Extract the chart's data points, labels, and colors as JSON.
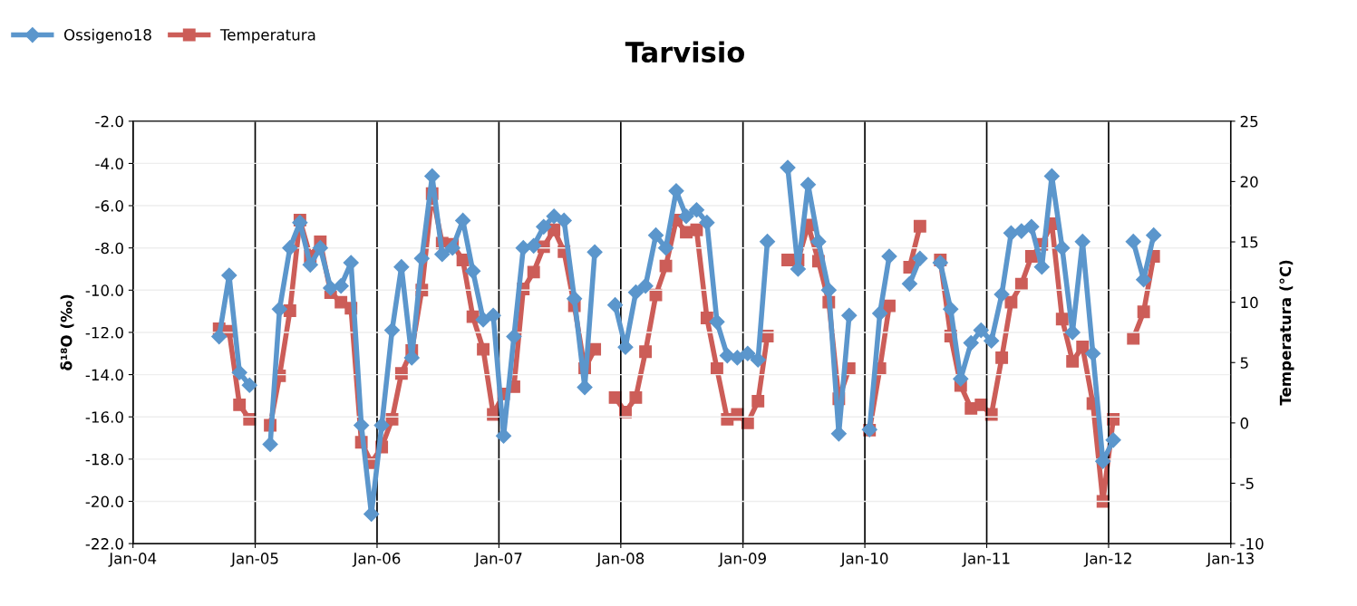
{
  "chart_data": {
    "type": "line",
    "title": "Tarvisio",
    "ylabel": "δ¹⁸O (‰)",
    "y2label": "Temperatura (°C)",
    "x": [
      "2004-09-15",
      "2004-10-15",
      "2004-11-15",
      "2004-12-15",
      "2005-01-15",
      "2005-02-15",
      "2005-03-15",
      "2005-04-15",
      "2005-05-15",
      "2005-06-15",
      "2005-07-15",
      "2005-08-15",
      "2005-09-15",
      "2005-10-15",
      "2005-11-15",
      "2005-12-15",
      "2006-01-15",
      "2006-02-15",
      "2006-03-15",
      "2006-04-15",
      "2006-05-15",
      "2006-06-15",
      "2006-07-15",
      "2006-08-15",
      "2006-09-15",
      "2006-10-15",
      "2006-11-15",
      "2006-12-15",
      "2007-01-15",
      "2007-02-15",
      "2007-03-15",
      "2007-04-15",
      "2007-05-15",
      "2007-06-15",
      "2007-07-15",
      "2007-08-15",
      "2007-09-15",
      "2007-10-15",
      "2007-11-15",
      "2007-12-15",
      "2008-01-15",
      "2008-02-15",
      "2008-03-15",
      "2008-04-15",
      "2008-05-15",
      "2008-06-15",
      "2008-07-15",
      "2008-08-15",
      "2008-09-15",
      "2008-10-15",
      "2008-11-15",
      "2008-12-15",
      "2009-01-15",
      "2009-02-15",
      "2009-03-15",
      "2009-04-15",
      "2009-05-15",
      "2009-06-15",
      "2009-07-15",
      "2009-08-15",
      "2009-09-15",
      "2009-10-15",
      "2009-11-15",
      "2009-12-15",
      "2010-01-15",
      "2010-02-15",
      "2010-03-15",
      "2010-04-15",
      "2010-05-15",
      "2010-06-15",
      "2010-07-15",
      "2010-08-15",
      "2010-09-15",
      "2010-10-15",
      "2010-11-15",
      "2010-12-15",
      "2011-01-15",
      "2011-02-15",
      "2011-03-15",
      "2011-04-15",
      "2011-05-15",
      "2011-06-15",
      "2011-07-15",
      "2011-08-15",
      "2011-09-15",
      "2011-10-15",
      "2011-11-15",
      "2011-12-15",
      "2012-01-15",
      "2012-02-15",
      "2012-03-15",
      "2012-04-15",
      "2012-05-15"
    ],
    "series": [
      {
        "name": "Ossigeno18",
        "color": "#5b96cc",
        "marker": "diamond",
        "values": [
          -12.2,
          -9.3,
          -13.9,
          -14.5,
          null,
          -17.3,
          -10.9,
          -8.0,
          -6.8,
          -8.8,
          -8.0,
          -9.9,
          -9.8,
          -8.7,
          -16.4,
          -20.6,
          -16.4,
          -11.9,
          -8.9,
          -13.2,
          -8.5,
          -4.6,
          -8.3,
          -8.0,
          -6.7,
          -9.1,
          -11.4,
          -11.2,
          -16.9,
          -12.2,
          -8.0,
          -7.9,
          -7.0,
          -6.5,
          -6.7,
          -10.4,
          -14.6,
          -8.2,
          null,
          -10.7,
          -12.7,
          -10.1,
          -9.8,
          -7.4,
          -8.0,
          -5.3,
          -6.5,
          -6.2,
          -6.8,
          -11.5,
          -13.1,
          -13.2,
          -13.0,
          -13.3,
          -7.7,
          null,
          -4.2,
          -9.0,
          -5.0,
          -7.7,
          -10.0,
          -16.8,
          -11.2,
          null,
          -16.6,
          -11.1,
          -8.4,
          null,
          -9.7,
          -8.5,
          null,
          -8.7,
          -10.9,
          -14.2,
          -12.5,
          -11.9,
          -12.4,
          -10.2,
          -7.3,
          -7.2,
          -7.0,
          -8.9,
          -4.6,
          -8.0,
          -12.0,
          -7.7,
          -13.0,
          -18.1,
          -17.1,
          null,
          -7.7,
          -9.5,
          -7.4
        ]
      },
      {
        "name": "Temperatura",
        "color": "#cc5d58",
        "marker": "square",
        "axis": "y2",
        "values": [
          7.8,
          7.6,
          1.5,
          0.3,
          null,
          -0.2,
          3.9,
          9.3,
          16.8,
          13.8,
          15.0,
          10.8,
          10.0,
          9.5,
          -1.6,
          -3.3,
          -2.0,
          0.3,
          4.1,
          6.0,
          11.0,
          19.0,
          14.9,
          14.8,
          13.5,
          8.8,
          6.1,
          0.7,
          2.4,
          3.0,
          11.1,
          12.5,
          14.6,
          16.0,
          14.2,
          9.7,
          4.5,
          6.1,
          null,
          2.1,
          0.9,
          2.1,
          5.9,
          10.6,
          13.0,
          16.8,
          15.8,
          16.0,
          8.7,
          4.5,
          0.3,
          0.7,
          0.0,
          1.8,
          7.2,
          null,
          13.5,
          13.5,
          16.4,
          13.4,
          10.0,
          2.0,
          4.5,
          null,
          -0.6,
          4.5,
          9.7,
          null,
          12.9,
          16.3,
          null,
          13.5,
          7.2,
          3.1,
          1.2,
          1.5,
          0.7,
          5.4,
          10.0,
          11.5,
          13.8,
          14.8,
          16.5,
          8.6,
          5.1,
          6.3,
          1.6,
          -6.5,
          0.3,
          null,
          7.0,
          9.2,
          13.8
        ]
      }
    ],
    "xlim": [
      "2004-01-01",
      "2013-01-01"
    ],
    "xticks": [
      {
        "value": "2004-01-01",
        "label": "Jan-04"
      },
      {
        "value": "2005-01-01",
        "label": "Jan-05"
      },
      {
        "value": "2006-01-01",
        "label": "Jan-06"
      },
      {
        "value": "2007-01-01",
        "label": "Jan-07"
      },
      {
        "value": "2008-01-01",
        "label": "Jan-08"
      },
      {
        "value": "2009-01-01",
        "label": "Jan-09"
      },
      {
        "value": "2010-01-01",
        "label": "Jan-10"
      },
      {
        "value": "2011-01-01",
        "label": "Jan-11"
      },
      {
        "value": "2012-01-01",
        "label": "Jan-12"
      },
      {
        "value": "2013-01-01",
        "label": "Jan-13"
      }
    ],
    "ylim": [
      -22,
      -2
    ],
    "yticks": [
      {
        "value": -22,
        "label": "-22.0"
      },
      {
        "value": -20,
        "label": "-20.0"
      },
      {
        "value": -18,
        "label": "-18.0"
      },
      {
        "value": -16,
        "label": "-16.0"
      },
      {
        "value": -14,
        "label": "-14.0"
      },
      {
        "value": -12,
        "label": "-12.0"
      },
      {
        "value": -10,
        "label": "-10.0"
      },
      {
        "value": -8,
        "label": "-8.0"
      },
      {
        "value": -6,
        "label": "-6.0"
      },
      {
        "value": -4,
        "label": "-4.0"
      },
      {
        "value": -2,
        "label": "-2.0"
      }
    ],
    "y2lim": [
      -10,
      25
    ],
    "y2ticks": [
      -10,
      -5,
      0,
      5,
      10,
      15,
      20,
      25
    ],
    "grid": true,
    "legend": "top left",
    "line_style": "solid"
  }
}
